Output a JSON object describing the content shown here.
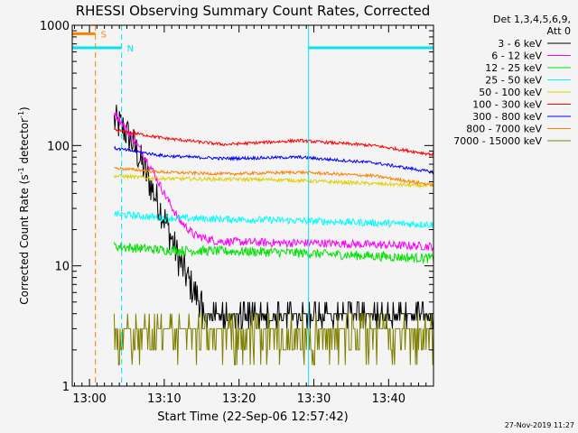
{
  "chart_data": {
    "type": "line",
    "title": "RHESSI Observing Summary Count Rates, Corrected",
    "xlabel": "Start Time (22-Sep-06 12:57:42)",
    "ylabel_main": "Corrected Count Rate (s",
    "ylabel_sup1": "-1",
    "ylabel_mid": " detector",
    "ylabel_sup2": "-1",
    "ylabel_end": ")",
    "yscale": "log",
    "xlim_min": [
      -2.3,
      46
    ],
    "ylim": [
      1,
      1000
    ],
    "x_ticks": [
      {
        "t": 0,
        "label": "13:00"
      },
      {
        "t": 10,
        "label": "13:10"
      },
      {
        "t": 20,
        "label": "13:20"
      },
      {
        "t": 30,
        "label": "13:30"
      },
      {
        "t": 40,
        "label": "13:40"
      }
    ],
    "y_ticks": [
      {
        "v": 1,
        "label": "1"
      },
      {
        "v": 10,
        "label": "10"
      },
      {
        "v": 100,
        "label": "100"
      },
      {
        "v": 1000,
        "label": "1000"
      }
    ],
    "legend_header": [
      "Det 1,3,4,5,6,9,",
      "Att 0"
    ],
    "footer_date": "27-Nov-2019 11:27",
    "markers": [
      {
        "label": "S",
        "color": "#ff8000",
        "bar_start": -2.3,
        "bar_end": 0.8,
        "line_t": 0.8,
        "dash": true,
        "bar_level": 850
      },
      {
        "label": "N",
        "color": "#00e5ee",
        "bar_start": -2.3,
        "bar_end": 4.3,
        "line_t": 4.3,
        "dash": true,
        "bar_level": 650
      },
      {
        "label": "",
        "color": "#00e5ee",
        "bar_start": 29.3,
        "bar_end": 46,
        "line_t": 29.3,
        "dash": false,
        "bar_level": 650
      },
      {
        "label": "",
        "color": "#00e5ee",
        "bar_start": 46,
        "bar_end": 46,
        "line_t": 46,
        "dash": true,
        "bar_level": 650
      }
    ],
    "series": [
      {
        "name": "3 - 6 keV",
        "color": "#000000",
        "points": [
          [
            3.3,
            160
          ],
          [
            4.5,
            140
          ],
          [
            6,
            100
          ],
          [
            8,
            50
          ],
          [
            10,
            25
          ],
          [
            12,
            11
          ],
          [
            14,
            6
          ],
          [
            15.5,
            4.5
          ],
          [
            17,
            4
          ],
          [
            46,
            3.6
          ]
        ],
        "noise": 0.3
      },
      {
        "name": "6 - 12 keV",
        "color": "#ff00ff",
        "points": [
          [
            3.3,
            190
          ],
          [
            4.5,
            150
          ],
          [
            6,
            110
          ],
          [
            8,
            70
          ],
          [
            10,
            40
          ],
          [
            12,
            24
          ],
          [
            14,
            18
          ],
          [
            17,
            16
          ],
          [
            25,
            15.5
          ],
          [
            30,
            15.5
          ],
          [
            46,
            14.5
          ]
        ],
        "noise": 0.07
      },
      {
        "name": "12 - 25 keV",
        "color": "#00e400",
        "points": [
          [
            3.3,
            14.5
          ],
          [
            10,
            13.5
          ],
          [
            25,
            13
          ],
          [
            46,
            11.5
          ]
        ],
        "noise": 0.08
      },
      {
        "name": "25 - 50 keV",
        "color": "#00ffff",
        "points": [
          [
            3.3,
            27
          ],
          [
            10,
            25
          ],
          [
            25,
            24
          ],
          [
            46,
            22
          ]
        ],
        "noise": 0.06
      },
      {
        "name": "50 - 100 keV",
        "color": "#e0d000",
        "points": [
          [
            3.3,
            56
          ],
          [
            10,
            53
          ],
          [
            25,
            52
          ],
          [
            46,
            46
          ]
        ],
        "noise": 0.03
      },
      {
        "name": "100 - 300 keV",
        "color": "#ff0000",
        "points": [
          [
            3.3,
            135
          ],
          [
            10,
            115
          ],
          [
            18,
            102
          ],
          [
            28,
            110
          ],
          [
            38,
            100
          ],
          [
            46,
            84
          ]
        ],
        "noise": 0.025
      },
      {
        "name": "300 - 800 keV",
        "color": "#0000ff",
        "points": [
          [
            3.3,
            95
          ],
          [
            10,
            82
          ],
          [
            18,
            78
          ],
          [
            28,
            80
          ],
          [
            38,
            72
          ],
          [
            46,
            60
          ]
        ],
        "noise": 0.025
      },
      {
        "name": "800 - 7000 keV",
        "color": "#ff8000",
        "points": [
          [
            3.3,
            65
          ],
          [
            10,
            60
          ],
          [
            18,
            58
          ],
          [
            28,
            60
          ],
          [
            38,
            56
          ],
          [
            46,
            47
          ]
        ],
        "noise": 0.025
      },
      {
        "name": "7000 - 15000 keV",
        "color": "#808000",
        "points": [
          [
            3.3,
            3
          ],
          [
            46,
            3
          ]
        ],
        "noise": 0.0
      }
    ]
  }
}
